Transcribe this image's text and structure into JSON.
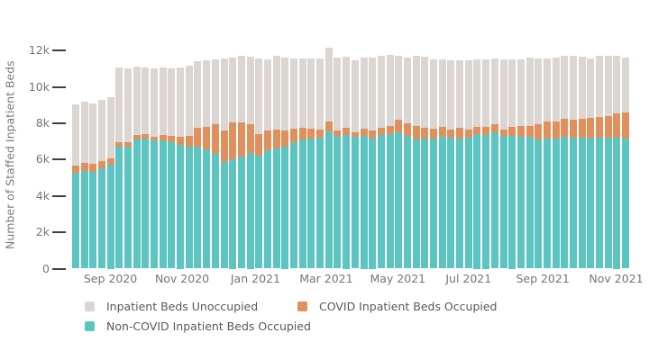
{
  "chart_data": {
    "type": "bar",
    "stacked": true,
    "title": "",
    "xlabel": "",
    "ylabel": "Number of Staffed Inpatient Beds",
    "ylim": [
      0,
      12570
    ],
    "grid": false,
    "yticks": [
      {
        "value": 0,
        "label": "0"
      },
      {
        "value": 2000,
        "label": "2k"
      },
      {
        "value": 4000,
        "label": "4k"
      },
      {
        "value": 6000,
        "label": "6k"
      },
      {
        "value": 8000,
        "label": "8k"
      },
      {
        "value": 10000,
        "label": "10k"
      },
      {
        "value": 12000,
        "label": "12k"
      }
    ],
    "xticks": [
      {
        "label": "Sep 2020",
        "bar_index": 5.0
      },
      {
        "label": "Nov 2020",
        "bar_index": 13.2
      },
      {
        "label": "Jan 2021",
        "bar_index": 21.6
      },
      {
        "label": "Mar 2021",
        "bar_index": 29.7
      },
      {
        "label": "May 2021",
        "bar_index": 37.9
      },
      {
        "label": "Jul 2021",
        "bar_index": 46.0
      },
      {
        "label": "Sep 2021",
        "bar_index": 54.5
      },
      {
        "label": "Nov 2021",
        "bar_index": 62.9
      }
    ],
    "x_unit": "week",
    "n_bars": 64,
    "series": [
      {
        "name": "Non-COVID Inpatient Beds Occupied",
        "color": "#5cc5c2",
        "values": [
          5270,
          5400,
          5320,
          5520,
          5740,
          6730,
          6730,
          7090,
          7140,
          7050,
          7050,
          6960,
          6840,
          6730,
          6730,
          6590,
          6300,
          5890,
          6010,
          6180,
          6350,
          6210,
          6510,
          6640,
          6730,
          6980,
          7090,
          7170,
          7210,
          7550,
          7290,
          7340,
          7250,
          7300,
          7170,
          7340,
          7390,
          7500,
          7290,
          7090,
          7140,
          7170,
          7250,
          7230,
          7170,
          7230,
          7420,
          7340,
          7500,
          7300,
          7300,
          7250,
          7250,
          7130,
          7170,
          7170,
          7250,
          7230,
          7230,
          7230,
          7230,
          7230,
          7230,
          7170
        ]
      },
      {
        "name": "COVID Inpatient Beds Occupied",
        "color": "#e0905d",
        "values": [
          420,
          450,
          480,
          410,
          310,
          250,
          250,
          280,
          260,
          230,
          320,
          330,
          420,
          560,
          1020,
          1210,
          1670,
          1730,
          2040,
          1870,
          1600,
          1180,
          1080,
          1000,
          860,
          720,
          660,
          530,
          430,
          570,
          330,
          410,
          250,
          400,
          420,
          440,
          480,
          720,
          710,
          780,
          610,
          530,
          550,
          410,
          580,
          440,
          380,
          460,
          450,
          370,
          530,
          620,
          620,
          830,
          950,
          950,
          1030,
          970,
          1010,
          1050,
          1100,
          1180,
          1310,
          1440
        ]
      },
      {
        "name": "Inpatient Beds Unoccupied",
        "color": "#dcd6d3",
        "values": [
          3350,
          3340,
          3320,
          3370,
          3390,
          4080,
          4030,
          3770,
          3700,
          3730,
          3690,
          3730,
          3830,
          3880,
          3670,
          3670,
          3550,
          3970,
          3590,
          3670,
          3720,
          4210,
          3960,
          4110,
          4050,
          3900,
          3850,
          3900,
          3960,
          4060,
          4020,
          3920,
          4000,
          3940,
          4050,
          3970,
          3930,
          3500,
          3640,
          3850,
          3920,
          3850,
          3750,
          3860,
          3720,
          3800,
          3720,
          3720,
          3640,
          3850,
          3720,
          3680,
          3770,
          3640,
          3480,
          3520,
          3470,
          3520,
          3440,
          3320,
          3390,
          3310,
          3210,
          3030
        ]
      }
    ],
    "legend_position": "bottom"
  },
  "legend_items": [
    {
      "label": "Inpatient Beds Unoccupied",
      "color": "#dcd6d3"
    },
    {
      "label": "Non-COVID Inpatient Beds Occupied",
      "color": "#5cc5c2"
    },
    {
      "label": "COVID Inpatient Beds Occupied",
      "color": "#e0905d"
    }
  ]
}
